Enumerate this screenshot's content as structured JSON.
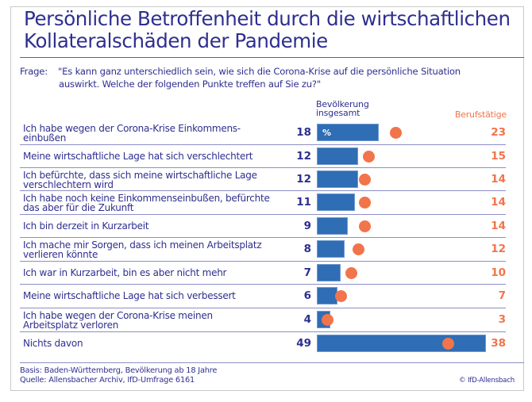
{
  "title_line1": "Persönliche Betroffenheit durch die wirtschaftlichen",
  "title_line2": "Kollateralschäden der Pandemie",
  "question": {
    "label": "Frage:",
    "line1": "\"Es kann ganz unterschiedlich sein, wie sich die Corona-Krise auf die persönliche Situation",
    "line2": "auswirkt. Welche der folgenden Punkte treffen auf Sie zu?\""
  },
  "footer": {
    "basis": "Basis: Baden-Württemberg, Bevölkerung ab 18 Jahre",
    "source": "Quelle: Allensbacher Archiv, IfD-Umfrage 6161",
    "copyright": "© IfD-Allensbach"
  },
  "colors": {
    "population_bar": "#2f6db4",
    "employed_dot": "#f2744a",
    "text": "#2e2f8f"
  },
  "chart_data": {
    "type": "bar",
    "title": "Persönliche Betroffenheit durch die wirtschaftlichen Kollateralschäden der Pandemie",
    "unit_label": "%",
    "xlim": [
      0,
      49
    ],
    "categories": [
      "Ich habe wegen der Corona-Krise Einkommens-\neinbußen",
      "Meine wirtschaftliche Lage hat sich verschlechtert",
      "Ich befürchte, dass sich meine wirtschaftliche Lage\nverschlechtern wird",
      "Ich habe noch keine Einkommenseinbußen, befürchte\ndas aber für die Zukunft",
      "Ich bin derzeit in Kurzarbeit",
      "Ich mache mir Sorgen, dass ich meinen Arbeitsplatz\nverlieren könnte",
      "Ich war in Kurzarbeit, bin es aber nicht mehr",
      "Meine wirtschaftliche Lage hat sich verbessert",
      "Ich habe wegen der Corona-Krise meinen\nArbeitsplatz verloren",
      "Nichts davon"
    ],
    "series": [
      {
        "name": "Bevölkerung\ninsgesamt",
        "mark": "bar",
        "values": [
          18,
          12,
          12,
          11,
          9,
          8,
          7,
          6,
          4,
          49
        ]
      },
      {
        "name": "Berufstätige",
        "mark": "dot",
        "values": [
          23,
          15,
          14,
          14,
          14,
          12,
          10,
          7,
          3,
          38
        ]
      }
    ],
    "legend": [
      "Bevölkerung insgesamt",
      "Berufstätige"
    ]
  }
}
